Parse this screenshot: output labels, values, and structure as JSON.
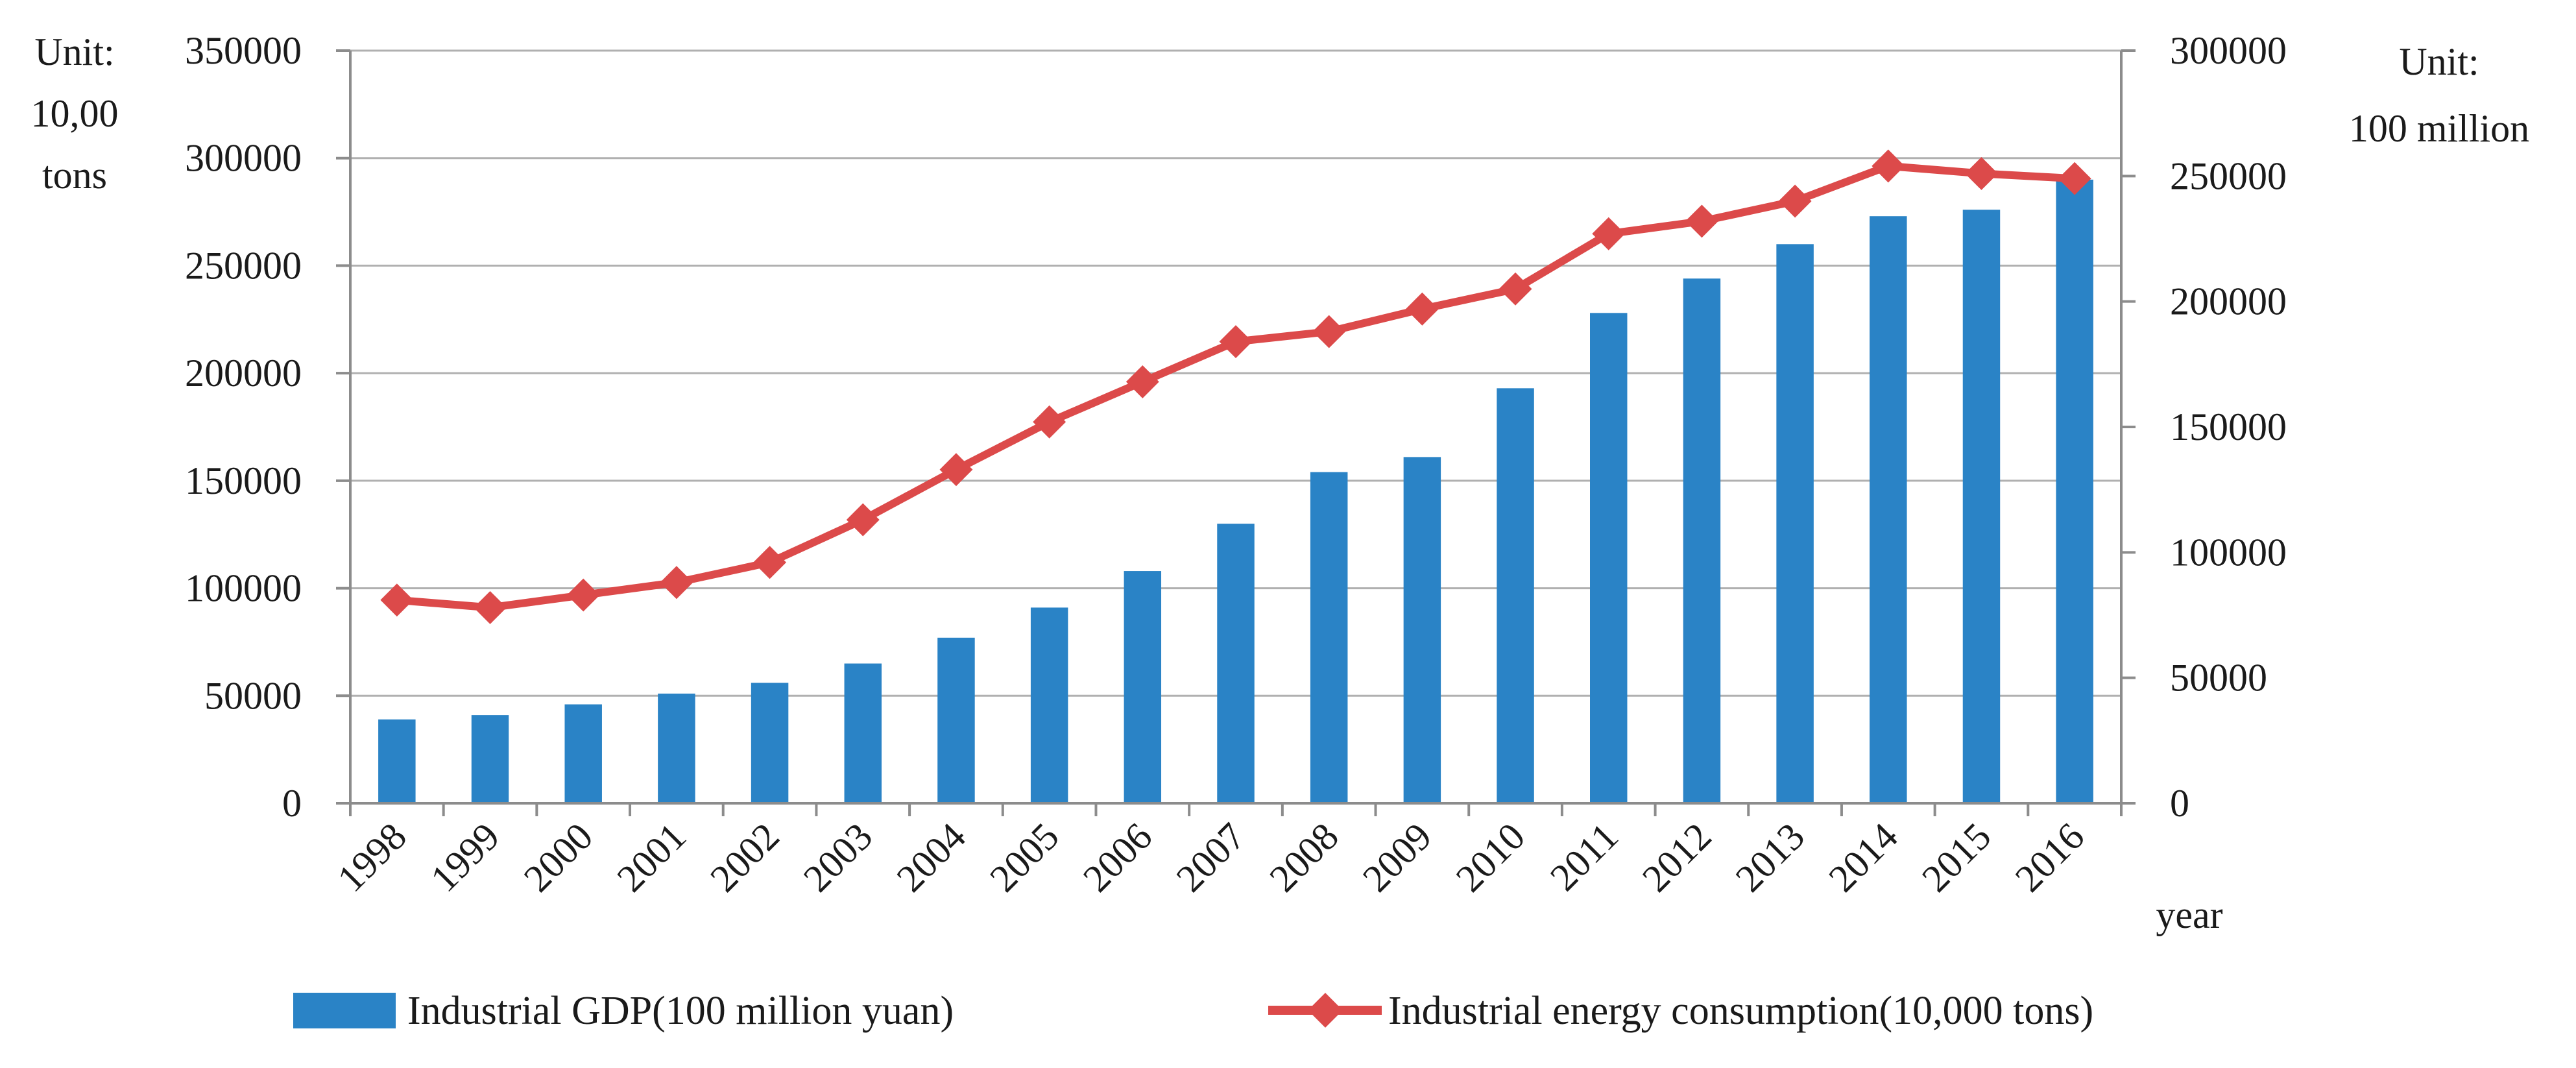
{
  "chart_data": {
    "type": "bar+line",
    "categories": [
      "1998",
      "1999",
      "2000",
      "2001",
      "2002",
      "2003",
      "2004",
      "2005",
      "2006",
      "2007",
      "2008",
      "2009",
      "2010",
      "2011",
      "2012",
      "2013",
      "2014",
      "2015",
      "2016"
    ],
    "series": [
      {
        "name": "Industrial GDP(100 million yuan)",
        "type": "bar",
        "axis": "left",
        "color": "#2a83c6",
        "values": [
          39000,
          41000,
          46000,
          51000,
          56000,
          65000,
          77000,
          91000,
          108000,
          130000,
          154000,
          161000,
          193000,
          228000,
          244000,
          260000,
          273000,
          276000,
          290000
        ]
      },
      {
        "name": "Industrial energy consumption(10,000 tons)",
        "type": "line",
        "axis": "right",
        "color": "#dc4a4a",
        "values": [
          81000,
          78000,
          83000,
          88000,
          96000,
          113000,
          133000,
          152000,
          168000,
          184000,
          188000,
          197000,
          205000,
          227000,
          232000,
          240000,
          254000,
          251000,
          249000
        ]
      }
    ],
    "y_left": {
      "ylim": [
        0,
        350000
      ],
      "ticks": [
        "0",
        "50000",
        "100000",
        "150000",
        "200000",
        "250000",
        "300000",
        "350000"
      ],
      "unit_lines": [
        "Unit:",
        "10,00",
        "tons"
      ]
    },
    "y_right": {
      "ylim": [
        0,
        300000
      ],
      "ticks": [
        "0",
        "50000",
        "100000",
        "150000",
        "200000",
        "250000",
        "300000"
      ],
      "unit_lines": [
        "Unit:",
        "100 million"
      ]
    },
    "xlabel": "year",
    "grid": true,
    "legend_position": "bottom"
  },
  "colors": {
    "axis": "#8c8c8c",
    "grid": "#b0b0b0"
  }
}
